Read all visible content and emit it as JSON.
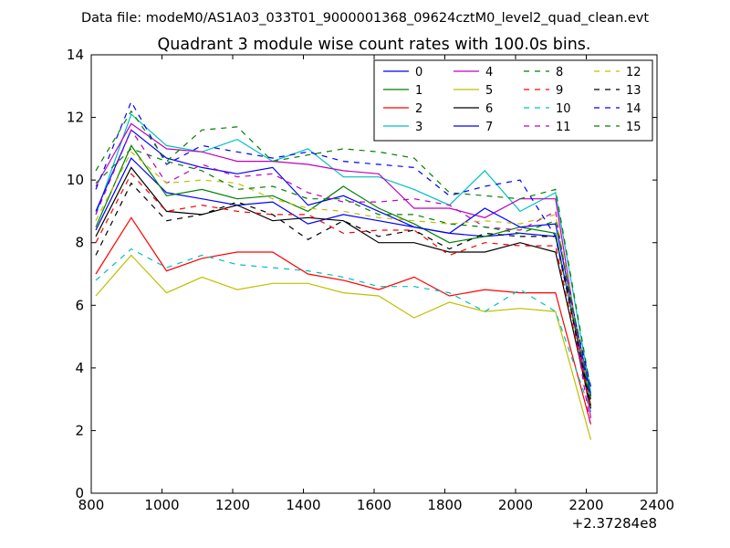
{
  "suptitle": "Data file: modeM0/AS1A03_033T01_9000001368_09624cztM0_level2_quad_clean.evt",
  "chart_data": {
    "type": "line",
    "title": "Quadrant 3 module wise count rates with 100.0s bins.",
    "xlabel": "",
    "ylabel": "",
    "x_offset_label": "+2.37284e8",
    "xlim": [
      800,
      2400
    ],
    "ylim": [
      0,
      14
    ],
    "xticks": [
      "800",
      "1000",
      "1200",
      "1400",
      "1600",
      "1800",
      "2000",
      "2200",
      "2400"
    ],
    "yticks": [
      "0",
      "2",
      "4",
      "6",
      "8",
      "10",
      "12",
      "14"
    ],
    "grid": false,
    "legend": "top-right, 4 columns",
    "x": [
      813,
      913,
      1013,
      1113,
      1213,
      1313,
      1413,
      1513,
      1613,
      1713,
      1813,
      1913,
      2013,
      2113,
      2213
    ],
    "series": [
      {
        "name": "0",
        "color": "#0000ff",
        "dash": "solid",
        "values": [
          8.4,
          10.7,
          9.6,
          9.4,
          9.2,
          9.3,
          8.6,
          8.9,
          8.7,
          8.5,
          8.3,
          8.2,
          8.3,
          8.2,
          3.0
        ]
      },
      {
        "name": "1",
        "color": "#008000",
        "dash": "solid",
        "values": [
          8.5,
          11.1,
          9.5,
          9.7,
          9.4,
          9.5,
          9.0,
          9.8,
          9.1,
          8.6,
          8.0,
          8.2,
          8.5,
          8.3,
          2.8
        ]
      },
      {
        "name": "2",
        "color": "#ff0000",
        "dash": "solid",
        "values": [
          7.0,
          8.8,
          7.1,
          7.5,
          7.7,
          7.7,
          7.0,
          6.8,
          6.5,
          6.9,
          6.3,
          6.5,
          6.4,
          6.4,
          2.2
        ]
      },
      {
        "name": "3",
        "color": "#00bfbf",
        "dash": "solid",
        "values": [
          8.9,
          12.1,
          11.1,
          10.9,
          11.3,
          10.6,
          11.0,
          10.1,
          10.1,
          9.7,
          9.2,
          10.3,
          9.0,
          9.6,
          3.2
        ]
      },
      {
        "name": "4",
        "color": "#bf00bf",
        "dash": "solid",
        "values": [
          9.8,
          11.8,
          11.0,
          10.9,
          10.6,
          10.6,
          10.5,
          10.3,
          10.2,
          9.1,
          9.1,
          8.8,
          9.4,
          9.4,
          2.4
        ]
      },
      {
        "name": "5",
        "color": "#bfbf00",
        "dash": "solid",
        "values": [
          6.3,
          7.6,
          6.4,
          6.9,
          6.5,
          6.7,
          6.7,
          6.4,
          6.3,
          5.6,
          6.1,
          5.8,
          5.9,
          5.8,
          1.7
        ]
      },
      {
        "name": "6",
        "color": "#000000",
        "dash": "solid",
        "values": [
          8.2,
          10.4,
          9.0,
          8.9,
          9.2,
          8.7,
          8.8,
          8.7,
          8.0,
          8.0,
          7.7,
          7.7,
          8.0,
          7.7,
          2.7
        ]
      },
      {
        "name": "7",
        "color": "#0000ff",
        "dash": "solid",
        "values": [
          9.0,
          11.6,
          10.7,
          10.4,
          10.2,
          10.4,
          9.2,
          9.5,
          9.0,
          8.5,
          8.3,
          9.1,
          8.5,
          8.6,
          3.1
        ]
      },
      {
        "name": "8",
        "color": "#008000",
        "dash": "dashed",
        "values": [
          9.9,
          11.0,
          10.6,
          11.6,
          11.7,
          10.6,
          10.8,
          11.0,
          10.9,
          10.7,
          9.6,
          9.5,
          9.4,
          9.7,
          3.3
        ]
      },
      {
        "name": "9",
        "color": "#ff0000",
        "dash": "dashed",
        "values": [
          8.0,
          10.2,
          9.0,
          9.2,
          9.0,
          8.9,
          8.9,
          8.3,
          8.4,
          8.4,
          7.6,
          8.0,
          7.9,
          7.9,
          2.7
        ]
      },
      {
        "name": "10",
        "color": "#00bfbf",
        "dash": "dashed",
        "values": [
          6.8,
          7.8,
          7.2,
          7.6,
          7.3,
          7.2,
          7.1,
          6.9,
          6.6,
          6.6,
          6.4,
          5.8,
          6.5,
          5.8,
          2.6
        ]
      },
      {
        "name": "11",
        "color": "#bf00bf",
        "dash": "dashed",
        "values": [
          8.9,
          11.6,
          9.9,
          10.5,
          10.1,
          10.2,
          9.6,
          9.3,
          9.3,
          9.4,
          9.2,
          8.5,
          8.4,
          9.0,
          2.1
        ]
      },
      {
        "name": "12",
        "color": "#bfbf00",
        "dash": "dashed",
        "values": [
          8.7,
          10.9,
          9.9,
          10.0,
          9.9,
          9.4,
          9.1,
          9.0,
          8.8,
          8.7,
          8.6,
          8.7,
          8.6,
          8.9,
          2.9
        ]
      },
      {
        "name": "13",
        "color": "#000000",
        "dash": "dashed",
        "values": [
          7.6,
          9.9,
          8.7,
          8.9,
          9.3,
          8.9,
          8.1,
          8.7,
          8.2,
          8.4,
          7.8,
          8.3,
          8.2,
          8.2,
          2.8
        ]
      },
      {
        "name": "14",
        "color": "#0000ff",
        "dash": "dashed",
        "values": [
          9.7,
          12.5,
          10.5,
          11.1,
          10.9,
          10.7,
          10.9,
          10.6,
          10.5,
          10.4,
          9.5,
          9.8,
          10.0,
          8.2,
          3.4
        ]
      },
      {
        "name": "15",
        "color": "#008000",
        "dash": "dashed",
        "values": [
          10.3,
          12.2,
          10.6,
          10.3,
          9.7,
          9.8,
          9.4,
          9.4,
          8.9,
          8.9,
          8.6,
          8.5,
          8.3,
          8.7,
          3.0
        ]
      }
    ]
  }
}
